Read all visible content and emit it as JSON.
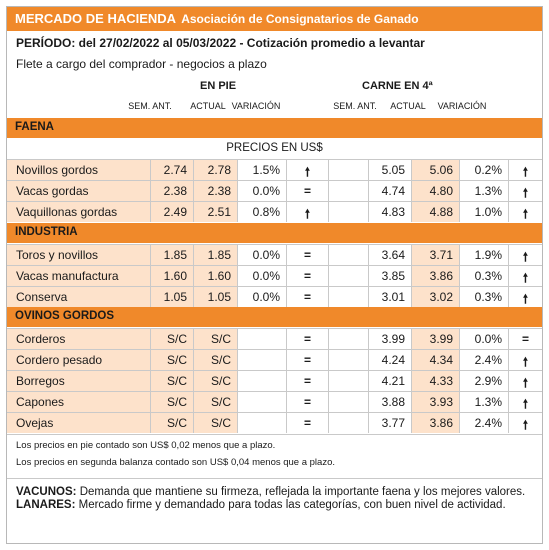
{
  "header": {
    "title": "MERCADO DE HACIENDA",
    "subtitle": "Asociación de Consignatarios de Ganado",
    "periodo": "PERÍODO: del 27/02/2022 al 05/03/2022 - Cotización promedio a levantar",
    "flete": "Flete a cargo del comprador - negocios a plazo"
  },
  "columns": {
    "en_pie": "EN PIE",
    "carne": "CARNE EN 4ª",
    "sem_ant": "SEM. ANT.",
    "actual": "ACTUAL",
    "variacion": "VARIACIÓN"
  },
  "precios_label": "PRECIOS EN US$",
  "sections": [
    {
      "name": "FAENA",
      "rows": [
        {
          "label": "Novillos gordos",
          "pie_ant": "2.74",
          "pie_act": "2.78",
          "pie_var": "1.5%",
          "pie_icon": "up-arrow",
          "carne_ant": "5.05",
          "carne_act": "5.06",
          "carne_var": "0.2%",
          "carne_icon": "up-arrow"
        },
        {
          "label": "Vacas gordas",
          "pie_ant": "2.38",
          "pie_act": "2.38",
          "pie_var": "0.0%",
          "pie_icon": "equal",
          "carne_ant": "4.74",
          "carne_act": "4.80",
          "carne_var": "1.3%",
          "carne_icon": "up-arrow"
        },
        {
          "label": "Vaquillonas gordas",
          "pie_ant": "2.49",
          "pie_act": "2.51",
          "pie_var": "0.8%",
          "pie_icon": "up-arrow",
          "carne_ant": "4.83",
          "carne_act": "4.88",
          "carne_var": "1.0%",
          "carne_icon": "up-arrow"
        }
      ]
    },
    {
      "name": "INDUSTRIA",
      "rows": [
        {
          "label": "Toros y novillos",
          "pie_ant": "1.85",
          "pie_act": "1.85",
          "pie_var": "0.0%",
          "pie_icon": "equal",
          "carne_ant": "3.64",
          "carne_act": "3.71",
          "carne_var": "1.9%",
          "carne_icon": "up-arrow"
        },
        {
          "label": "Vacas manufactura",
          "pie_ant": "1.60",
          "pie_act": "1.60",
          "pie_var": "0.0%",
          "pie_icon": "equal",
          "carne_ant": "3.85",
          "carne_act": "3.86",
          "carne_var": "0.3%",
          "carne_icon": "up-arrow"
        },
        {
          "label": "Conserva",
          "pie_ant": "1.05",
          "pie_act": "1.05",
          "pie_var": "0.0%",
          "pie_icon": "equal",
          "carne_ant": "3.01",
          "carne_act": "3.02",
          "carne_var": "0.3%",
          "carne_icon": "up-arrow"
        }
      ]
    },
    {
      "name": "OVINOS GORDOS",
      "rows": [
        {
          "label": "Corderos",
          "pie_ant": "S/C",
          "pie_act": "S/C",
          "pie_var": "",
          "pie_icon": "equal",
          "carne_ant": "3.99",
          "carne_act": "3.99",
          "carne_var": "0.0%",
          "carne_icon": "equal"
        },
        {
          "label": "Cordero pesado",
          "pie_ant": "S/C",
          "pie_act": "S/C",
          "pie_var": "",
          "pie_icon": "equal",
          "carne_ant": "4.24",
          "carne_act": "4.34",
          "carne_var": "2.4%",
          "carne_icon": "up-arrow"
        },
        {
          "label": "Borregos",
          "pie_ant": "S/C",
          "pie_act": "S/C",
          "pie_var": "",
          "pie_icon": "equal",
          "carne_ant": "4.21",
          "carne_act": "4.33",
          "carne_var": "2.9%",
          "carne_icon": "up-arrow"
        },
        {
          "label": "Capones",
          "pie_ant": "S/C",
          "pie_act": "S/C",
          "pie_var": "",
          "pie_icon": "equal",
          "carne_ant": "3.88",
          "carne_act": "3.93",
          "carne_var": "1.3%",
          "carne_icon": "up-arrow"
        },
        {
          "label": "Ovejas",
          "pie_ant": "S/C",
          "pie_act": "S/C",
          "pie_var": "",
          "pie_icon": "equal",
          "carne_ant": "3.77",
          "carne_act": "3.86",
          "carne_var": "2.4%",
          "carne_icon": "up-arrow"
        }
      ]
    }
  ],
  "icons": {
    "up-arrow": "🠕",
    "equal": "="
  },
  "notes": [
    "Los precios en pie contado son US$ 0,02 menos que a plazo.",
    "Los precios en segunda balanza contado son US$ 0,04 menos que a plazo."
  ],
  "comment": {
    "vacunos_label": "VACUNOS:",
    "vacunos_text": "Demanda que mantiene su firmeza, reflejada la importante faena y los mejores valores.",
    "lanares_label": "LANARES:",
    "lanares_text": "Mercado firme y demandado para todas las categorías, con buen nivel de actividad."
  },
  "colors": {
    "accent": "#f0892a",
    "cell_shade": "#fde2cb"
  }
}
